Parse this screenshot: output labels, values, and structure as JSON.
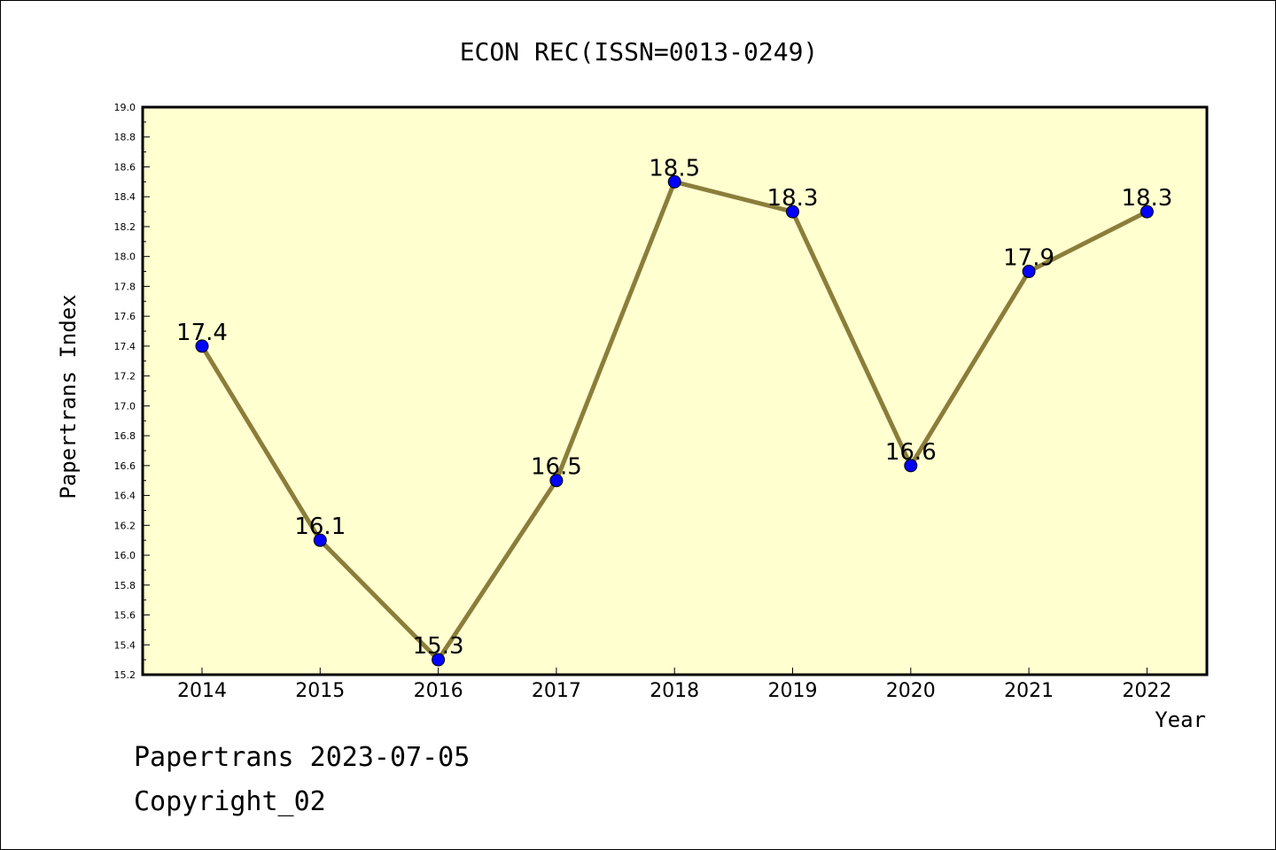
{
  "chart_data": {
    "type": "line",
    "title": "ECON REC(ISSN=0013-0249)",
    "xlabel": "Year",
    "ylabel": "Papertrans Index",
    "categories": [
      "2014",
      "2015",
      "2016",
      "2017",
      "2018",
      "2019",
      "2020",
      "2021",
      "2022"
    ],
    "series": [
      {
        "values": [
          17.4,
          16.1,
          15.3,
          16.5,
          18.5,
          18.3,
          16.6,
          17.9,
          18.3
        ],
        "data_labels": [
          "17.4",
          "16.1",
          "15.3",
          "16.5",
          "18.5",
          "18.3",
          "16.6",
          "17.9",
          "18.3"
        ],
        "line_color": "#8b7d3a",
        "marker_color": "#0000ff"
      }
    ],
    "ylim": [
      15.2,
      19.0
    ],
    "yticks": [
      "15.2",
      "15.4",
      "15.6",
      "15.8",
      "16.0",
      "16.2",
      "16.4",
      "16.6",
      "16.8",
      "17.0",
      "17.2",
      "17.4",
      "17.6",
      "17.8",
      "18.0",
      "18.2",
      "18.4",
      "18.6",
      "18.8",
      "19.0"
    ],
    "plot_background": "#ffffd0",
    "grid": false,
    "legend": "none"
  },
  "footer": {
    "date_line": "Papertrans 2023-07-05",
    "copyright": "Copyright_02"
  }
}
